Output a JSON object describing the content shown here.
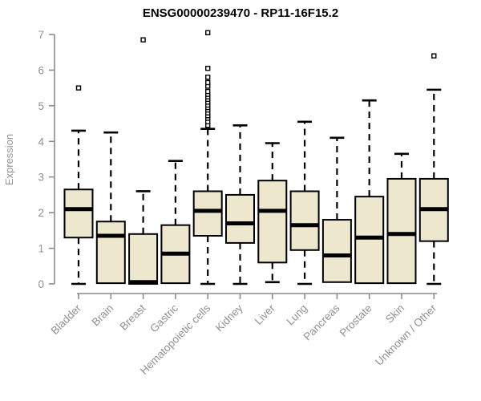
{
  "chart_data": {
    "type": "boxplot",
    "title": "ENSG00000239470 - RP11-16F15.2",
    "xlabel": "",
    "ylabel": "Expression",
    "ylim": [
      0,
      7
    ],
    "yticks": [
      0,
      1,
      2,
      3,
      4,
      5,
      6,
      7
    ],
    "grid": false,
    "legend": "none",
    "colors": {
      "box_fill": "#ece7cd",
      "box_border": "#000000",
      "axis": "#8c8c8c",
      "axis_text": "#919191",
      "title": "#000000"
    },
    "categories": [
      "Bladder",
      "Brain",
      "Breast",
      "Gastric",
      "Hematopoietic cells",
      "Kidney",
      "Liver",
      "Lung",
      "Pancreas",
      "Prostate",
      "Skin",
      "Unknown / Other"
    ],
    "boxes": [
      {
        "category": "Bladder",
        "whisker_low": 0,
        "q1": 1.3,
        "median": 2.1,
        "q3": 2.65,
        "whisker_high": 4.3,
        "outliers": [
          5.5
        ]
      },
      {
        "category": "Brain",
        "whisker_low": 0.02,
        "q1": 0.02,
        "median": 1.35,
        "q3": 1.75,
        "whisker_high": 4.25,
        "outliers": []
      },
      {
        "category": "Breast",
        "whisker_low": 0,
        "q1": 0,
        "median": 0.05,
        "q3": 1.4,
        "whisker_high": 2.6,
        "outliers": [
          6.85
        ]
      },
      {
        "category": "Gastric",
        "whisker_low": 0.02,
        "q1": 0.02,
        "median": 0.85,
        "q3": 1.65,
        "whisker_high": 3.45,
        "outliers": []
      },
      {
        "category": "Hematopoietic cells",
        "whisker_low": 0,
        "q1": 1.35,
        "median": 2.05,
        "q3": 2.6,
        "whisker_high": 4.35,
        "outliers": [
          4.45,
          4.55,
          4.65,
          4.72,
          4.8,
          4.88,
          4.95,
          5.02,
          5.1,
          5.18,
          5.25,
          5.32,
          5.4,
          5.55,
          5.65,
          5.8,
          6.05,
          7.05
        ]
      },
      {
        "category": "Kidney",
        "whisker_low": 0,
        "q1": 1.15,
        "median": 1.7,
        "q3": 2.5,
        "whisker_high": 4.45,
        "outliers": []
      },
      {
        "category": "Liver",
        "whisker_low": 0.05,
        "q1": 0.6,
        "median": 2.05,
        "q3": 2.9,
        "whisker_high": 3.95,
        "outliers": []
      },
      {
        "category": "Lung",
        "whisker_low": 0,
        "q1": 0.95,
        "median": 1.65,
        "q3": 2.6,
        "whisker_high": 4.55,
        "outliers": []
      },
      {
        "category": "Pancreas",
        "whisker_low": 0.05,
        "q1": 0.05,
        "median": 0.8,
        "q3": 1.8,
        "whisker_high": 4.1,
        "outliers": []
      },
      {
        "category": "Prostate",
        "whisker_low": 0.02,
        "q1": 0.02,
        "median": 1.3,
        "q3": 2.45,
        "whisker_high": 5.15,
        "outliers": []
      },
      {
        "category": "Skin",
        "whisker_low": 0.02,
        "q1": 0.02,
        "median": 1.4,
        "q3": 2.95,
        "whisker_high": 3.65,
        "outliers": []
      },
      {
        "category": "Unknown / Other",
        "whisker_low": 0,
        "q1": 1.2,
        "median": 2.1,
        "q3": 2.95,
        "whisker_high": 5.45,
        "outliers": [
          6.4
        ]
      }
    ]
  }
}
